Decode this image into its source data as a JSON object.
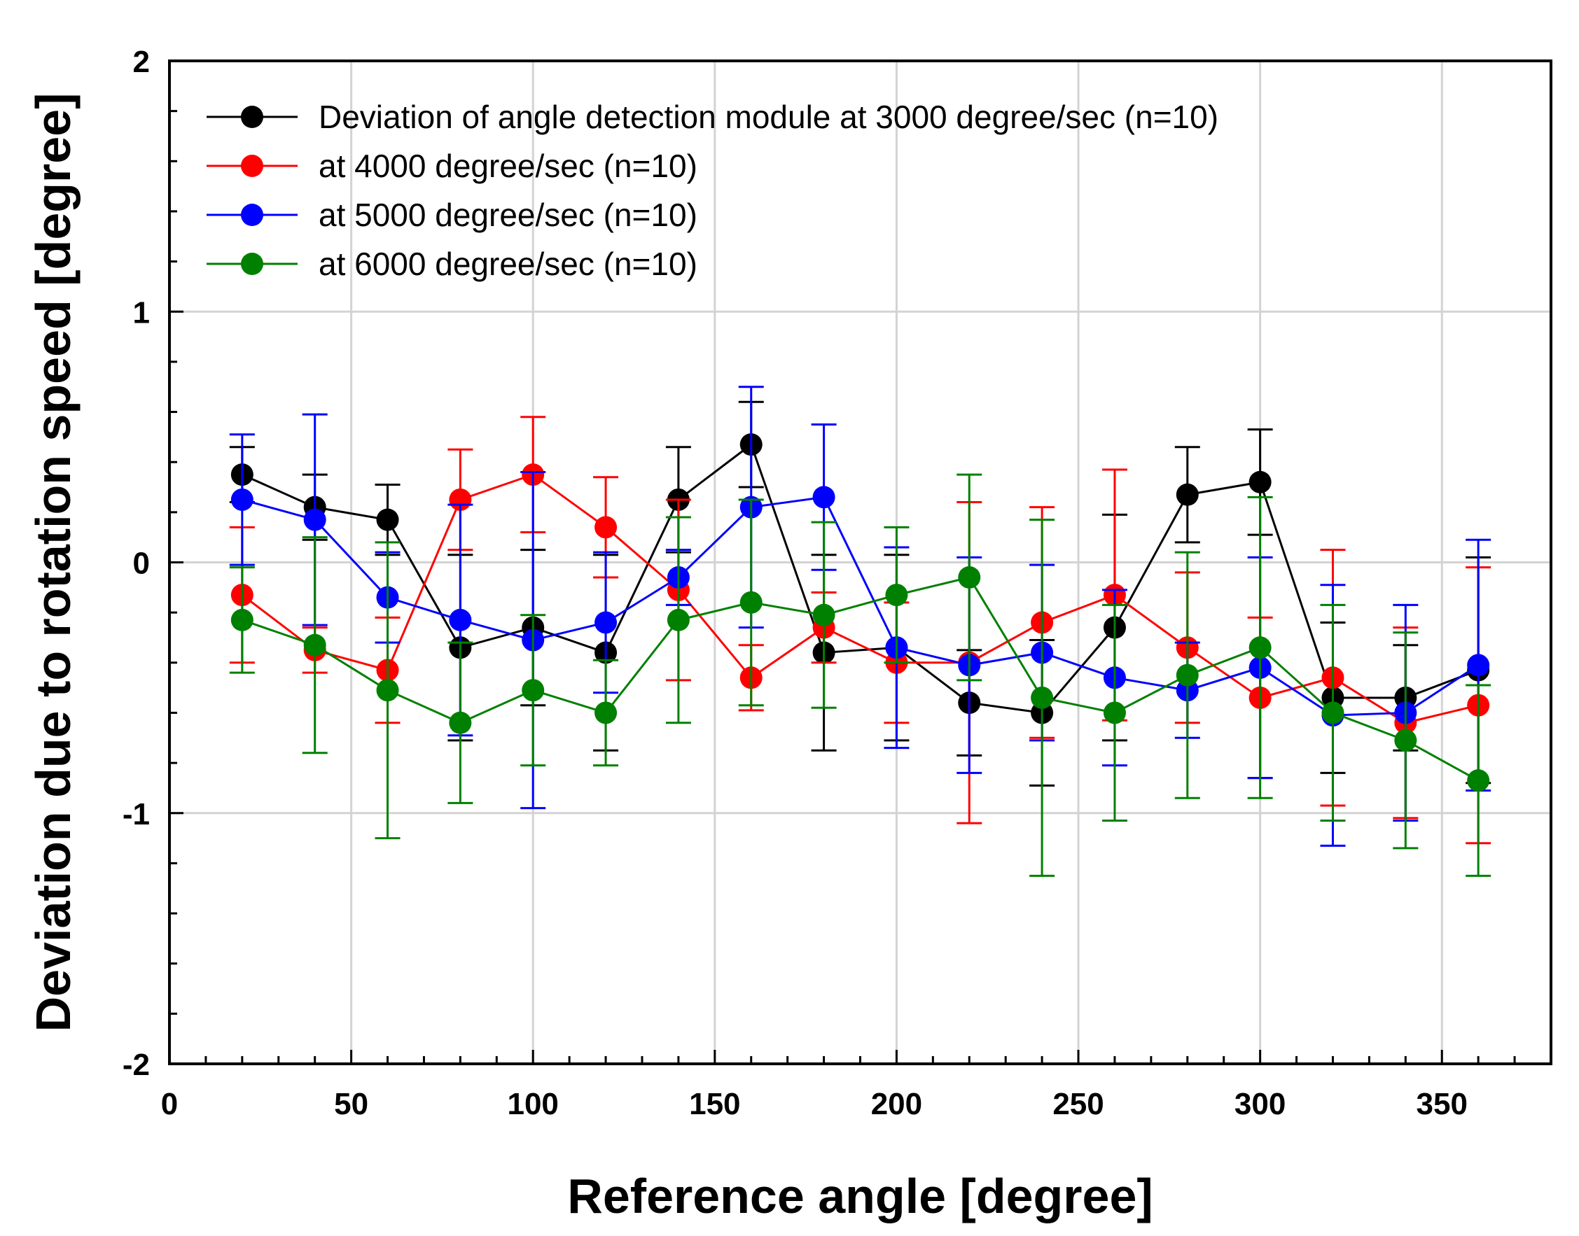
{
  "chart_data": {
    "type": "line",
    "title": "",
    "xlabel": "Reference angle [degree]",
    "ylabel": "Deviation due to rotation speed [degree]",
    "xlim": [
      0,
      380
    ],
    "ylim": [
      -2,
      2
    ],
    "xticks": [
      0,
      50,
      100,
      150,
      200,
      250,
      300,
      350
    ],
    "yticks": [
      -2,
      -1,
      0,
      1,
      2
    ],
    "xtick_labels": [
      "0",
      "50",
      "100",
      "150",
      "200",
      "250",
      "300",
      "350"
    ],
    "ytick_labels": [
      "-2",
      "-1",
      "0",
      "1",
      "2"
    ],
    "grid": true,
    "legend_position": "top-left",
    "x": [
      20,
      40,
      60,
      80,
      100,
      120,
      140,
      160,
      180,
      200,
      220,
      240,
      260,
      280,
      300,
      320,
      340,
      360
    ],
    "series": [
      {
        "name": "Deviation of angle detection module at 3000 degree/sec (n=10)",
        "color": "#000000",
        "values": [
          0.35,
          0.22,
          0.17,
          -0.34,
          -0.26,
          -0.36,
          0.25,
          0.47,
          -0.36,
          -0.34,
          -0.56,
          -0.6,
          -0.26,
          0.27,
          0.32,
          -0.54,
          -0.54,
          -0.43
        ],
        "error": [
          0.11,
          0.13,
          0.14,
          0.37,
          0.31,
          0.39,
          0.21,
          0.17,
          0.39,
          0.37,
          0.21,
          0.29,
          0.45,
          0.19,
          0.21,
          0.3,
          0.21,
          0.45
        ]
      },
      {
        "name": "at 4000 degree/sec (n=10)",
        "color": "#ff0000",
        "values": [
          -0.13,
          -0.35,
          -0.43,
          0.25,
          0.35,
          0.14,
          -0.11,
          -0.46,
          -0.26,
          -0.4,
          -0.4,
          -0.24,
          -0.13,
          -0.34,
          -0.54,
          -0.46,
          -0.64,
          -0.57
        ],
        "error": [
          0.27,
          0.09,
          0.21,
          0.2,
          0.23,
          0.2,
          0.36,
          0.13,
          0.14,
          0.24,
          0.64,
          0.46,
          0.5,
          0.3,
          0.32,
          0.51,
          0.38,
          0.55
        ]
      },
      {
        "name": "at 5000 degree/sec (n=10)",
        "color": "#0000ff",
        "values": [
          0.25,
          0.17,
          -0.14,
          -0.23,
          -0.31,
          -0.24,
          -0.06,
          0.22,
          0.26,
          -0.34,
          -0.41,
          -0.36,
          -0.46,
          -0.51,
          -0.42,
          -0.61,
          -0.6,
          -0.41
        ],
        "error": [
          0.26,
          0.42,
          0.18,
          0.46,
          0.67,
          0.28,
          0.11,
          0.48,
          0.29,
          0.4,
          0.43,
          0.35,
          0.35,
          0.19,
          0.44,
          0.52,
          0.43,
          0.5
        ]
      },
      {
        "name": "at 6000 degree/sec (n=10)",
        "color": "#008000",
        "values": [
          -0.23,
          -0.33,
          -0.51,
          -0.64,
          -0.51,
          -0.6,
          -0.23,
          -0.16,
          -0.21,
          -0.13,
          -0.06,
          -0.54,
          -0.6,
          -0.45,
          -0.34,
          -0.6,
          -0.71,
          -0.87
        ],
        "error": [
          0.21,
          0.43,
          0.59,
          0.32,
          0.3,
          0.21,
          0.41,
          0.41,
          0.37,
          0.27,
          0.41,
          0.71,
          0.43,
          0.49,
          0.6,
          0.43,
          0.43,
          0.38
        ]
      }
    ]
  }
}
